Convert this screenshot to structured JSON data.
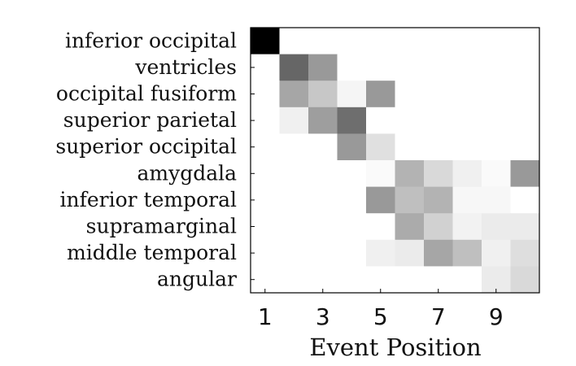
{
  "chart_data": {
    "type": "heatmap",
    "title": "",
    "xlabel": "Event Position",
    "ylabel": "",
    "x_tick_labels": [
      "1",
      "3",
      "5",
      "7",
      "9"
    ],
    "x_tick_positions": [
      1,
      3,
      5,
      7,
      9
    ],
    "x_range": [
      1,
      10
    ],
    "rows": [
      "inferior occipital",
      "ventricles",
      "occipital fusiform",
      "superior parietal",
      "superior occipital",
      "amygdala",
      "inferior temporal",
      "supramarginal",
      "middle temporal",
      "angular"
    ],
    "values": [
      [
        1.0,
        0,
        0,
        0,
        0,
        0,
        0,
        0,
        0,
        0
      ],
      [
        0,
        0.6,
        0.4,
        0,
        0,
        0,
        0,
        0,
        0,
        0
      ],
      [
        0,
        0.35,
        0.22,
        0.04,
        0.4,
        0,
        0,
        0,
        0,
        0
      ],
      [
        0,
        0.06,
        0.38,
        0.57,
        0,
        0,
        0,
        0,
        0,
        0
      ],
      [
        0,
        0,
        0,
        0.4,
        0.12,
        0,
        0,
        0,
        0,
        0
      ],
      [
        0,
        0,
        0,
        0,
        0.02,
        0.3,
        0.15,
        0.06,
        0.02,
        0.4
      ],
      [
        0,
        0,
        0,
        0,
        0.4,
        0.25,
        0.3,
        0.03,
        0.03,
        0
      ],
      [
        0,
        0,
        0,
        0,
        0,
        0.33,
        0.18,
        0.05,
        0.08,
        0.08
      ],
      [
        0,
        0,
        0,
        0,
        0.06,
        0.08,
        0.35,
        0.25,
        0.06,
        0.13
      ],
      [
        0,
        0,
        0,
        0,
        0,
        0,
        0,
        0,
        0.08,
        0.15
      ]
    ],
    "colormap": "white-to-black (higher value = darker)",
    "grid": false
  }
}
